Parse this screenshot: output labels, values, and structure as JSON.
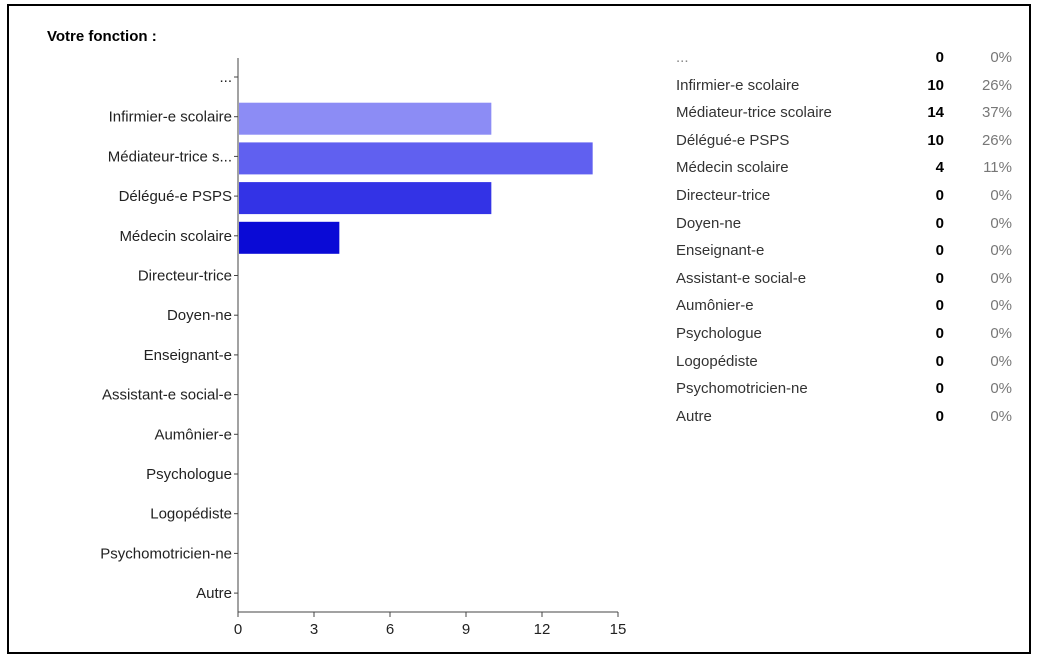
{
  "question": "Votre fonction :",
  "chart_data": {
    "type": "bar",
    "orientation": "horizontal",
    "categories": [
      "...",
      "Infirmier-e scolaire",
      "Médiateur-trice s...",
      "Délégué-e PSPS",
      "Médecin scolaire",
      "Directeur-trice",
      "Doyen-ne",
      "Enseignant-e",
      "Assistant-e social-e",
      "Aumônier-e",
      "Psychologue",
      "Logopédiste",
      "Psychomotricien-ne",
      "Autre"
    ],
    "values": [
      0,
      10,
      14,
      10,
      4,
      0,
      0,
      0,
      0,
      0,
      0,
      0,
      0,
      0
    ],
    "bar_colors": [
      "#8c8cf5",
      "#8c8cf5",
      "#6060f0",
      "#3333e6",
      "#0a0ad6",
      "#0a0ad6",
      "#0a0ad6",
      "#0a0ad6",
      "#0a0ad6",
      "#0a0ad6",
      "#0a0ad6",
      "#0a0ad6",
      "#0a0ad6",
      "#0a0ad6"
    ],
    "xticks": [
      "0",
      "3",
      "6",
      "9",
      "12",
      "15"
    ],
    "xlim": [
      0,
      15
    ],
    "grid": false
  },
  "legend_rows": [
    {
      "label": "...",
      "count": "0",
      "pct": "0%"
    },
    {
      "label": "Infirmier-e scolaire",
      "count": "10",
      "pct": "26%"
    },
    {
      "label": "Médiateur-trice scolaire",
      "count": "14",
      "pct": "37%"
    },
    {
      "label": "Délégué-e PSPS",
      "count": "10",
      "pct": "26%"
    },
    {
      "label": "Médecin scolaire",
      "count": "4",
      "pct": "11%"
    },
    {
      "label": "Directeur-trice",
      "count": "0",
      "pct": "0%"
    },
    {
      "label": "Doyen-ne",
      "count": "0",
      "pct": "0%"
    },
    {
      "label": "Enseignant-e",
      "count": "0",
      "pct": "0%"
    },
    {
      "label": "Assistant-e social-e",
      "count": "0",
      "pct": "0%"
    },
    {
      "label": "Aumônier-e",
      "count": "0",
      "pct": "0%"
    },
    {
      "label": "Psychologue",
      "count": "0",
      "pct": "0%"
    },
    {
      "label": "Logopédiste",
      "count": "0",
      "pct": "0%"
    },
    {
      "label": "Psychomotricien-ne",
      "count": "0",
      "pct": "0%"
    },
    {
      "label": "Autre",
      "count": "0",
      "pct": "0%"
    }
  ]
}
